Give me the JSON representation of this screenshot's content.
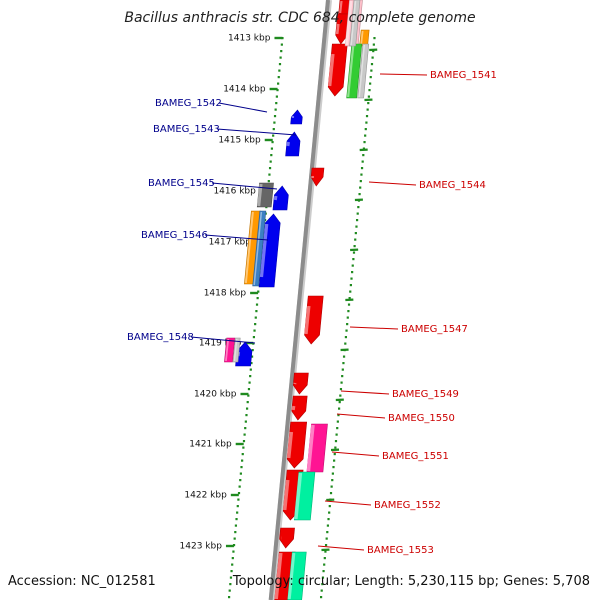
{
  "title": "Bacillus anthracis str. CDC 684, complete genome",
  "accession": "Accession: NC_012581",
  "summary": "Topology: circular; Length: 5,230,115 bp; Genes: 5,708",
  "colors": {
    "backbone": "#8c8c8c",
    "scale_dots": "#1f8a1f",
    "forward_gene": "#0000ee",
    "reverse_gene": "#ee0000",
    "forward_label": "#00008b",
    "reverse_label": "#cc0000",
    "orange": "#ff9900",
    "steelblue": "#3b7fc4",
    "gray": "#666666",
    "magenta": "#ff1493",
    "lightgray": "#c8c8c8",
    "mint": "#00f0a0",
    "green": "#33cc33",
    "pink": "#ffc0cb"
  },
  "scale_ticks": [
    {
      "label": "1413 kbp"
    },
    {
      "label": "1414 kbp"
    },
    {
      "label": "1415 kbp"
    },
    {
      "label": "1416 kbp"
    },
    {
      "label": "1417 kbp"
    },
    {
      "label": "1418 kbp"
    },
    {
      "label": "1419 kbp"
    },
    {
      "label": "1420 kbp"
    },
    {
      "label": "1421 kbp"
    },
    {
      "label": "1422 kbp"
    },
    {
      "label": "1423 kbp"
    }
  ],
  "forward_genes": [
    {
      "label": "BAMEG_1542"
    },
    {
      "label": "BAMEG_1543"
    },
    {
      "label": "BAMEG_1545"
    },
    {
      "label": "BAMEG_1546"
    },
    {
      "label": "BAMEG_1548"
    }
  ],
  "reverse_genes": [
    {
      "label": "BAMEG_1541"
    },
    {
      "label": "BAMEG_1544"
    },
    {
      "label": "BAMEG_1547"
    },
    {
      "label": "BAMEG_1549"
    },
    {
      "label": "BAMEG_1550"
    },
    {
      "label": "BAMEG_1551"
    },
    {
      "label": "BAMEG_1552"
    },
    {
      "label": "BAMEG_1553"
    }
  ]
}
